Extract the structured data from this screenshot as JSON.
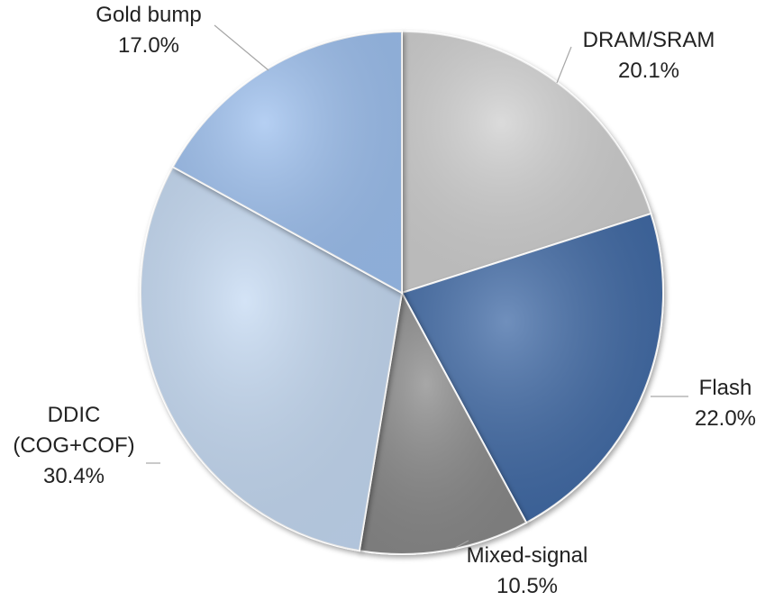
{
  "chart_data": {
    "type": "pie",
    "title": "",
    "slices": [
      {
        "label": "DRAM/SRAM",
        "value_label": "20.1%",
        "value": 20.1,
        "color": "#cfcfcf"
      },
      {
        "label": "Flash",
        "value_label": "22.0%",
        "value": 22.0,
        "color": "#3f6aa6"
      },
      {
        "label": "Mixed-signal",
        "value_label": "10.5%",
        "value": 10.5,
        "color": "#8a8a8a"
      },
      {
        "label": "DDIC\n(COG+COF)",
        "value_label": "30.4%",
        "value": 30.4,
        "color": "#c5daf3"
      },
      {
        "label": "Gold bump",
        "value_label": "17.0%",
        "value": 17.0,
        "color": "#9dc0ef"
      }
    ],
    "start_angle": "12 o'clock",
    "direction": "clockwise",
    "legend": "none",
    "labels": "outside-with-leader-lines"
  }
}
